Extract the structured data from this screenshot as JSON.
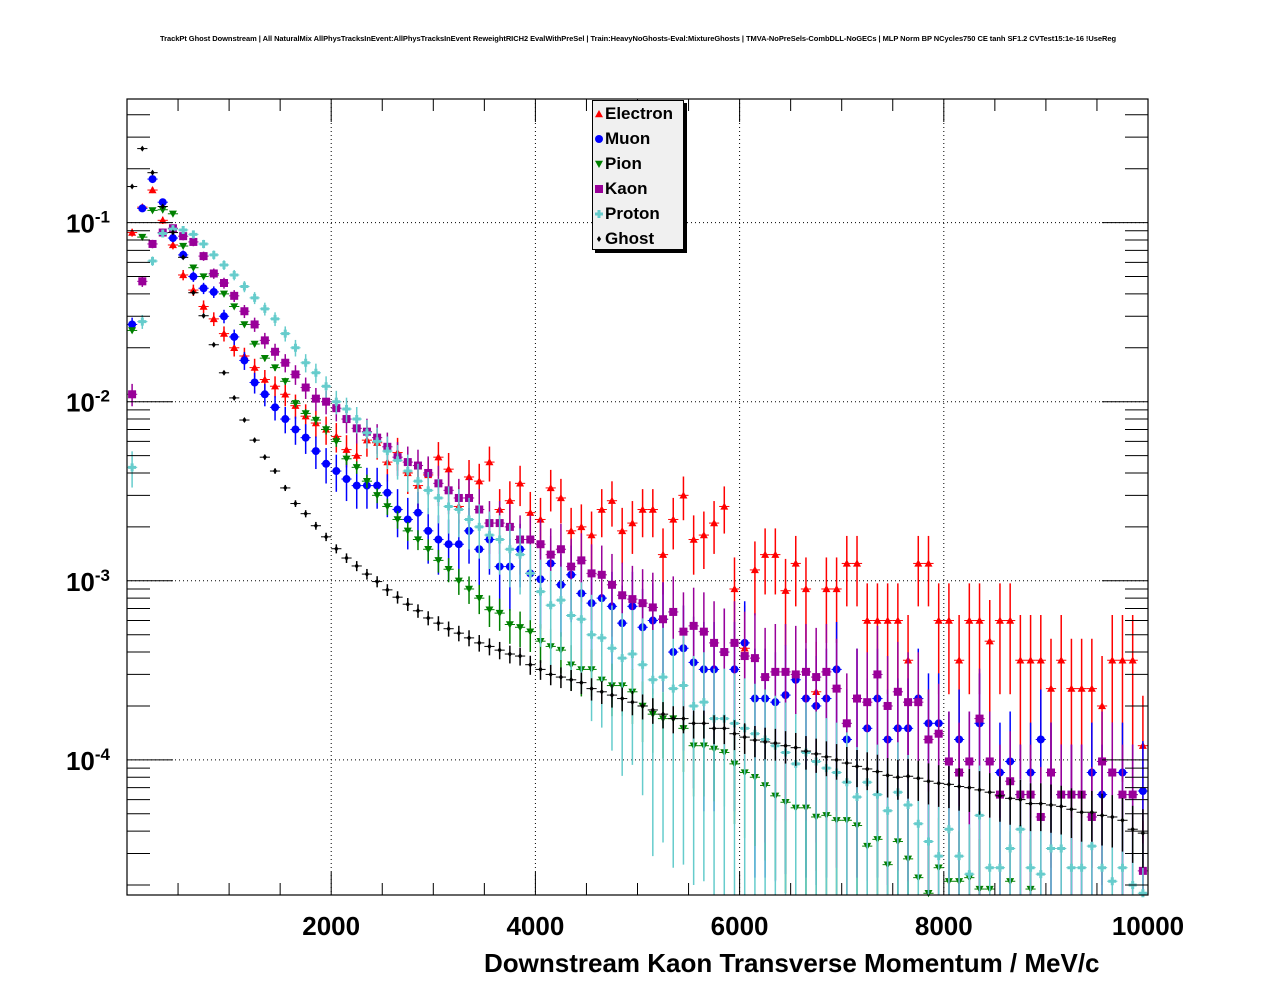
{
  "title": "TrackPt Ghost Downstream | All NaturalMix AllPhysTracksInEvent:AllPhysTracksInEvent ReweightRICH2 EvalWithPreSel | Train:HeavyNoGhosts-Eval:MixtureGhosts | TMVA-NoPreSels-CombDLL-NoGECs | MLP Norm BP NCycles750 CE tanh SF1.2 CVTest15:1e-16 !UseReg",
  "chart_data": {
    "type": "scatter",
    "title": "TrackPt Ghost Downstream | All NaturalMix AllPhysTracksInEvent:AllPhysTracksInEvent ReweightRICH2 EvalWithPreSel | Train:HeavyNoGhosts-Eval:MixtureGhosts | TMVA-NoPreSels-CombDLL-NoGECs | MLP Norm BP NCycles750 CE tanh SF1.2 CVTest15:1e-16 !UseReg",
    "xlabel": "Downstream Kaon Transverse Momentum / MeV/c",
    "ylabel": "",
    "xlim": [
      0,
      10000
    ],
    "ylim": [
      1.76e-05,
      0.49
    ],
    "yscale": "log",
    "grid": true,
    "legend_position": "top-center",
    "x_ticks": [
      {
        "value": 2000,
        "label": "2000"
      },
      {
        "value": 4000,
        "label": "4000"
      },
      {
        "value": 6000,
        "label": "6000"
      },
      {
        "value": 8000,
        "label": "8000"
      },
      {
        "value": 10000,
        "label": "10000"
      }
    ],
    "y_ticks": [
      {
        "value": 0.1,
        "base": "10",
        "exp": "-1"
      },
      {
        "value": 0.01,
        "base": "10",
        "exp": "-2"
      },
      {
        "value": 0.001,
        "base": "10",
        "exp": "-3"
      },
      {
        "value": 0.0001,
        "base": "10",
        "exp": "-4"
      }
    ],
    "bin_width": 100,
    "x_first_bin_center": 50,
    "series": [
      {
        "name": "Electron",
        "color": "#ff0000",
        "marker": "triangle-up",
        "values": [
          0.088,
          0.122,
          0.152,
          0.103,
          0.075,
          0.051,
          0.042,
          0.034,
          0.029,
          0.024,
          0.02,
          0.018,
          0.0155,
          0.0133,
          0.0122,
          0.011,
          0.0095,
          0.0083,
          0.0076,
          0.007,
          0.0064,
          0.0054,
          0.005,
          0.0061,
          0.0059,
          0.0046,
          0.0052,
          0.004,
          0.0034,
          0.0039,
          0.0049,
          0.0042,
          0.0026,
          0.0038,
          0.0036,
          0.0046,
          0.0025,
          0.0028,
          0.0035,
          0.0024,
          0.0022,
          0.0033,
          0.0029,
          0.0019,
          0.002,
          0.0018,
          0.0025,
          0.0028,
          0.0019,
          0.0021,
          0.0025,
          0.0025,
          0.0014,
          0.0022,
          0.003,
          0.0017,
          0.0018,
          0.0021,
          0.0026,
          0.0009,
          0.00042,
          0.00115,
          0.0014,
          0.0014,
          0.00088,
          0.00125,
          0.0009,
          0.00024,
          0.0009,
          0.0009,
          0.00125,
          0.00125,
          0.0006,
          0.0006,
          0.0006,
          0.0006,
          0.00036,
          0.00125,
          0.00125,
          0.0006,
          0.0006,
          0.00036,
          0.0006,
          0.0006,
          0.00046,
          0.0006,
          0.0006,
          0.00036,
          0.00036,
          0.00036,
          0.00025,
          0.00036,
          0.00025,
          0.00025,
          0.00025,
          0.0002,
          0.00036,
          0.00036,
          0.00036,
          0.00012
        ]
      },
      {
        "name": "Muon",
        "color": "#0000ff",
        "marker": "circle",
        "values": [
          0.027,
          0.12,
          0.175,
          0.13,
          0.082,
          0.066,
          0.05,
          0.043,
          0.041,
          0.03,
          0.023,
          0.017,
          0.0128,
          0.011,
          0.0093,
          0.008,
          0.007,
          0.0063,
          0.0053,
          0.0045,
          0.0041,
          0.0037,
          0.0034,
          0.0034,
          0.0034,
          0.0031,
          0.0025,
          0.0022,
          0.0024,
          0.0019,
          0.0017,
          0.0016,
          0.0016,
          0.0019,
          0.0015,
          0.0017,
          0.0012,
          0.0012,
          0.0015,
          0.0011,
          0.00102,
          0.00125,
          0.00095,
          0.00108,
          0.00085,
          0.00075,
          0.0008,
          0.00072,
          0.00058,
          0.00072,
          0.00055,
          0.0006,
          0.00061,
          0.0004,
          0.00042,
          0.00035,
          0.00032,
          0.00032,
          0.0004,
          0.00032,
          0.00045,
          0.00022,
          0.00022,
          0.00021,
          0.00023,
          0.00028,
          0.00022,
          0.0002,
          0.00022,
          0.00032,
          0.00013,
          0.00022,
          0.00015,
          0.00022,
          0.00013,
          0.00015,
          0.00015,
          0.00022,
          0.00016,
          0.00016,
          9.8e-05,
          0.00013,
          9.8e-05,
          0.00016,
          9.8e-05,
          8.5e-05,
          9.8e-05,
          6.4e-05,
          8.5e-05,
          0.00013,
          8.5e-05,
          6.4e-05,
          6.4e-05,
          6.4e-05,
          8.5e-05,
          6.4e-05,
          8.5e-05,
          8.5e-05,
          6.4e-05,
          6.7e-05
        ]
      },
      {
        "name": "Pion",
        "color": "#008000",
        "marker": "triangle-down",
        "values": [
          0.025,
          0.083,
          0.117,
          0.118,
          0.112,
          0.074,
          0.056,
          0.05,
          0.051,
          0.04,
          0.034,
          0.027,
          0.021,
          0.0175,
          0.0155,
          0.013,
          0.0098,
          0.0086,
          0.0079,
          0.007,
          0.006,
          0.0048,
          0.0043,
          0.0036,
          0.003,
          0.0026,
          0.0022,
          0.0019,
          0.0017,
          0.0015,
          0.0013,
          0.00116,
          0.001,
          0.0009,
          0.0008,
          0.00069,
          0.00066,
          0.00057,
          0.00055,
          0.00052,
          0.00046,
          0.00043,
          0.00041,
          0.00034,
          0.00032,
          0.00032,
          0.00028,
          0.00026,
          0.00026,
          0.00024,
          0.0002,
          0.00018,
          0.00017,
          0.00017,
          0.00015,
          0.00012,
          0.00012,
          0.000115,
          0.00011,
          9.5e-05,
          8.5e-05,
          8e-05,
          7.2e-05,
          6.3e-05,
          5.8e-05,
          5.4e-05,
          5.4e-05,
          4.8e-05,
          4.9e-05,
          4.6e-05,
          4.6e-05,
          4.3e-05,
          3.3e-05,
          3.6e-05,
          2.6e-05,
          3.5e-05,
          2.8e-05,
          2.2e-05,
          1.8e-05,
          2.5e-05,
          2.1e-05,
          2.1e-05,
          2.2e-05,
          1.9e-05,
          1.9e-05,
          1.7e-05,
          2.1e-05,
          1.7e-05,
          1.9e-05,
          1.7e-05,
          1.6e-05,
          1.6e-05,
          1.6e-05,
          1.7e-05,
          1.6e-05,
          1.6e-05,
          1.6e-05,
          1.6e-05,
          1.6e-05,
          1.6e-05
        ]
      },
      {
        "name": "Kaon",
        "color": "#990099",
        "marker": "square",
        "values": [
          0.011,
          0.047,
          0.076,
          0.088,
          0.093,
          0.084,
          0.078,
          0.065,
          0.052,
          0.046,
          0.039,
          0.032,
          0.027,
          0.022,
          0.019,
          0.0165,
          0.0142,
          0.012,
          0.0104,
          0.01,
          0.0092,
          0.008,
          0.0071,
          0.0068,
          0.0063,
          0.0056,
          0.0049,
          0.0046,
          0.0044,
          0.004,
          0.0035,
          0.0032,
          0.0029,
          0.0029,
          0.0025,
          0.0021,
          0.0021,
          0.002,
          0.0017,
          0.0017,
          0.0016,
          0.0014,
          0.0015,
          0.0012,
          0.0013,
          0.0011,
          0.00108,
          0.00095,
          0.00083,
          0.00079,
          0.00075,
          0.00071,
          0.00061,
          0.00067,
          0.00052,
          0.00056,
          0.00052,
          0.00045,
          0.0004,
          0.00045,
          0.00038,
          0.00037,
          0.00029,
          0.00031,
          0.00031,
          0.0003,
          0.00031,
          0.00029,
          0.00031,
          0.00025,
          0.00016,
          0.00022,
          0.00021,
          0.0003,
          0.0002,
          0.00024,
          0.00021,
          0.00021,
          0.00013,
          0.00014,
          9.8e-05,
          8.5e-05,
          9.8e-05,
          0.00017,
          9.8e-05,
          6.4e-05,
          7.6e-05,
          6.4e-05,
          6.4e-05,
          4.8e-05,
          8.5e-05,
          6.4e-05,
          6.4e-05,
          6.4e-05,
          4.8e-05,
          9.8e-05,
          8.5e-05,
          6.4e-05,
          6.4e-05,
          2.4e-05
        ]
      },
      {
        "name": "Proton",
        "color": "#66cccc",
        "marker": "cross",
        "values": [
          0.0043,
          0.028,
          0.061,
          0.087,
          0.092,
          0.091,
          0.086,
          0.076,
          0.066,
          0.058,
          0.051,
          0.044,
          0.038,
          0.033,
          0.029,
          0.024,
          0.02,
          0.0165,
          0.0145,
          0.0122,
          0.01,
          0.0091,
          0.008,
          0.0067,
          0.006,
          0.0053,
          0.0047,
          0.0041,
          0.0036,
          0.0032,
          0.0029,
          0.0026,
          0.0025,
          0.0022,
          0.002,
          0.0018,
          0.0017,
          0.0015,
          0.0014,
          0.0011,
          0.00087,
          0.00073,
          0.00078,
          0.00064,
          0.00061,
          0.0005,
          0.00048,
          0.00042,
          0.00037,
          0.00039,
          0.00034,
          0.00028,
          0.00029,
          0.00025,
          0.00026,
          0.0002,
          0.00021,
          0.00017,
          0.00017,
          0.00016,
          0.00015,
          0.00014,
          0.00013,
          0.00012,
          0.00011,
          9.5e-05,
          0.00011,
          9.8e-05,
          9e-05,
          8.5e-05,
          7.5e-05,
          6.2e-05,
          7.5e-05,
          6.4e-05,
          5.2e-05,
          6.6e-05,
          5.6e-05,
          4.4e-05,
          3.5e-05,
          2.9e-05,
          4.1e-05,
          2.9e-05,
          2.3e-05,
          4.9e-05,
          2.5e-05,
          2.5e-05,
          3.2e-05,
          4.1e-05,
          2.5e-05,
          2.3e-05,
          3.2e-05,
          3.2e-05,
          2.5e-05,
          2.5e-05,
          3.3e-05,
          2.5e-05,
          2.1e-05,
          2.5e-05,
          2e-05,
          1.8e-05
        ]
      },
      {
        "name": "Ghost",
        "color": "#000000",
        "marker": "diamond",
        "values": [
          0.159,
          0.259,
          0.19,
          0.123,
          0.088,
          0.064,
          0.0406,
          0.0302,
          0.0208,
          0.0145,
          0.0105,
          0.0079,
          0.0061,
          0.0049,
          0.0041,
          0.0033,
          0.0027,
          0.00237,
          0.00203,
          0.00176,
          0.00151,
          0.00134,
          0.00121,
          0.00109,
          0.00099,
          0.00089,
          0.00081,
          0.00074,
          0.00068,
          0.00062,
          0.00058,
          0.00054,
          0.00051,
          0.00048,
          0.00045,
          0.00043,
          0.00041,
          0.00039,
          0.00038,
          0.00034,
          0.00032,
          0.0003,
          0.00029,
          0.00028,
          0.00027,
          0.00025,
          0.00024,
          0.00023,
          0.00022,
          0.00021,
          0.0002,
          0.00019,
          0.00018,
          0.00017,
          0.00017,
          0.00016,
          0.00016,
          0.00015,
          0.00015,
          0.00014,
          0.000134,
          0.000129,
          0.000126,
          0.000124,
          0.00012,
          0.000117,
          0.000112,
          0.000108,
          0.000104,
          0.0001,
          9.6e-05,
          9.2e-05,
          8.9e-05,
          8.6e-05,
          8.2e-05,
          8e-05,
          8.1e-05,
          7.9e-05,
          7.6e-05,
          7.4e-05,
          7.3e-05,
          7.1e-05,
          7e-05,
          6.8e-05,
          6.6e-05,
          6.3e-05,
          6.1e-05,
          6e-05,
          5.7e-05,
          5.7e-05,
          5.6e-05,
          5.5e-05,
          5.3e-05,
          5.1e-05,
          5.1e-05,
          4.9e-05,
          4.8e-05,
          4.6e-05,
          4.1e-05,
          3.9e-05
        ]
      }
    ]
  }
}
